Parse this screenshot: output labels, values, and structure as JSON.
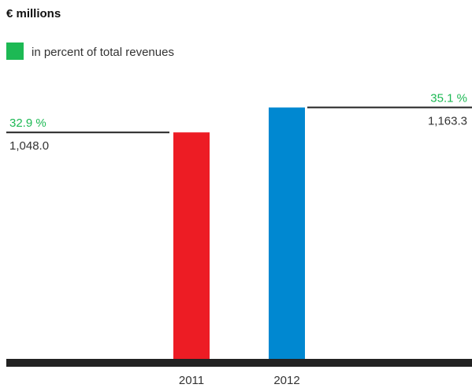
{
  "chart_data": {
    "type": "bar",
    "title": "€ millions",
    "legend": {
      "label": "in percent of total revenues",
      "color": "#1db954"
    },
    "categories": [
      "2011",
      "2012"
    ],
    "series": [
      {
        "values": [
          1048.0,
          1163.3
        ],
        "value_labels": [
          "1,048.0",
          "1,163.3"
        ],
        "percent_values": [
          32.9,
          35.1
        ],
        "percent_labels": [
          "32.9 %",
          "35.1 %"
        ],
        "colors": [
          "#ed1c24",
          "#0088d1"
        ]
      }
    ],
    "ylim": [
      0,
      1260
    ],
    "grid": false,
    "xlabel": "",
    "ylabel": ""
  }
}
